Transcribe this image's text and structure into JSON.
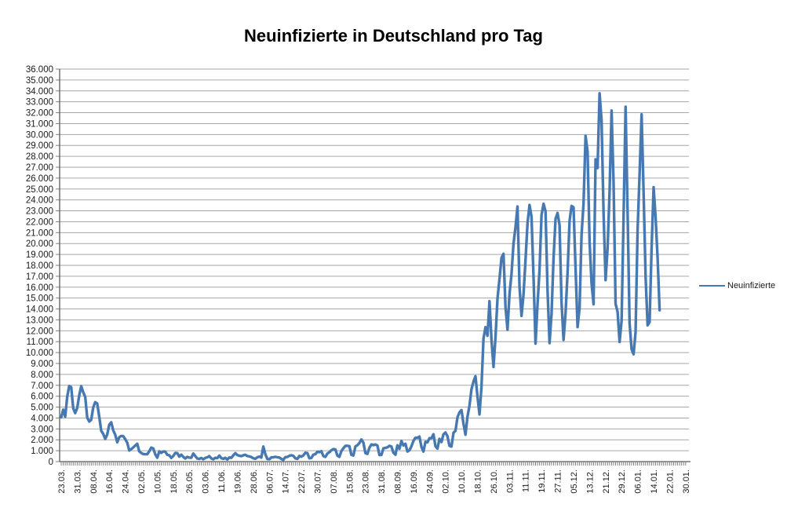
{
  "title": "Neuinfizierte in Deutschland pro Tag",
  "legend": {
    "label": "Neuinfizierte"
  },
  "colors": {
    "series_line": "#4679B2",
    "gridline": "#A6A6A6",
    "axis": "#5A5A5A",
    "tick": "#808080",
    "text": "#1A1A1A",
    "background": "#FFFFFF"
  },
  "chart_data": {
    "type": "line",
    "title": "Neuinfizierte in Deutschland pro Tag",
    "xlabel": "",
    "ylabel": "",
    "grid": "horizontal",
    "legend_position": "right",
    "y_axis": {
      "min": 0,
      "max": 36000,
      "step": 1000,
      "tick_labels": [
        "36.000",
        "35.000",
        "34.000",
        "33.000",
        "32.000",
        "31.000",
        "30.000",
        "29.000",
        "28.000",
        "27.000",
        "26.000",
        "25.000",
        "24.000",
        "23.000",
        "22.000",
        "21.000",
        "20.000",
        "19.000",
        "18.000",
        "17.000",
        "16.000",
        "15.000",
        "14.000",
        "13.000",
        "12.000",
        "11.000",
        "10.000",
        "9.000",
        "8.000",
        "7.000",
        "6.000",
        "5.000",
        "4.000",
        "3.000",
        "2.000",
        "1.000",
        "0"
      ]
    },
    "x_axis": {
      "tick_labels": [
        "23.03.",
        "31.03.",
        "08.04.",
        "16.04.",
        "24.04.",
        "02.05.",
        "10.05.",
        "18.05.",
        "26.05.",
        "03.06.",
        "11.06.",
        "19.06.",
        "28.06.",
        "06.07.",
        "14.07.",
        "22.07.",
        "30.07.",
        "07.08.",
        "15.08.",
        "23.08.",
        "31.08.",
        "08.09.",
        "16.09.",
        "24.09.",
        "02.10.",
        "10.10.",
        "18.10.",
        "26.10.",
        "03.11.",
        "11.11.",
        "19.11.",
        "27.11.",
        "05.12.",
        "13.12.",
        "21.12.",
        "29.12.",
        "06.01.",
        "14.01.",
        "22.01.",
        "30.01."
      ],
      "label_every_n_points": 8,
      "total_slots": 313,
      "labels_rotated_degrees": -90
    },
    "series": [
      {
        "name": "Neuinfizierte",
        "color": "#4679B2",
        "values": [
          4062,
          4764,
          4118,
          5940,
          6933,
          6824,
          4900,
          4450,
          4923,
          6064,
          6922,
          6365,
          5936,
          4031,
          3677,
          3834,
          4974,
          5453,
          5323,
          4133,
          2821,
          2537,
          2082,
          2486,
          3380,
          3609,
          2866,
          2458,
          1775,
          2237,
          2352,
          2337,
          2055,
          1737,
          1018,
          1144,
          1304,
          1478,
          1639,
          945,
          793,
          697,
          679,
          685,
          947,
          1284,
          1209,
          667,
          357,
          933,
          798,
          933,
          913,
          620,
          583,
          342,
          513,
          797,
          777,
          460,
          638,
          431,
          289,
          432,
          362,
          353,
          741,
          507,
          286,
          247,
          333,
          213,
          342,
          394,
          507,
          301,
          214,
          350,
          318,
          555,
          318,
          258,
          348,
          192,
          379,
          345,
          580,
          770,
          601,
          537,
          503,
          580,
          630,
          512,
          477,
          421,
          305,
          262,
          397,
          466,
          370,
          1380,
          682,
          239,
          219,
          390,
          397,
          442,
          395,
          378,
          248,
          159,
          412,
          429,
          534,
          583,
          529,
          305,
          249,
          522,
          454,
          569,
          815,
          781,
          305,
          340,
          633,
          684,
          902,
          870,
          955,
          509,
          432,
          741,
          856,
          1045,
          1147,
          1122,
          555,
          436,
          966,
          1226,
          1445,
          1449,
          1415,
          625,
          561,
          1390,
          1510,
          1707,
          2034,
          1737,
          782,
          711,
          1278,
          1576,
          1507,
          1571,
          1479,
          610,
          612,
          1218,
          1256,
          1311,
          1453,
          1378,
          814,
          633,
          1499,
          1176,
          1892,
          1484,
          1630,
          927,
          1037,
          1407,
          1901,
          2194,
          2179,
          2297,
          1345,
          922,
          1821,
          1769,
          2143,
          2153,
          2507,
          1411,
          1192,
          2089,
          1798,
          2503,
          2673,
          2331,
          1449,
          1382,
          2639,
          2828,
          4058,
          4516,
          4721,
          3483,
          2467,
          4122,
          5132,
          6638,
          7334,
          7830,
          5978,
          4325,
          6868,
          11287,
          12331,
          11542,
          14714,
          11176,
          8685,
          11409,
          14964,
          16774,
          18681,
          19059,
          14177,
          12097,
          15352,
          17214,
          19990,
          21506,
          23399,
          16017,
          13363,
          15332,
          18487,
          21866,
          23542,
          22461,
          16947,
          10824,
          14419,
          17561,
          22609,
          23648,
          22964,
          15741,
          10864,
          13554,
          18633,
          22268,
          22806,
          21695,
          14611,
          11169,
          13604,
          17270,
          22046,
          23449,
          23318,
          17767,
          12332,
          14054,
          20815,
          23679,
          29875,
          28438,
          20200,
          16362,
          14432,
          27728,
          26923,
          33777,
          31300,
          22771,
          16643,
          19528,
          24740,
          32195,
          25533,
          14455,
          13755,
          10976,
          12892,
          22459,
          32552,
          22924,
          12690,
          10315,
          9847,
          11897,
          21237,
          26391,
          31849,
          24694,
          16946,
          12497,
          12802,
          19600,
          25164,
          22368,
          18678,
          13882
        ]
      }
    ]
  }
}
